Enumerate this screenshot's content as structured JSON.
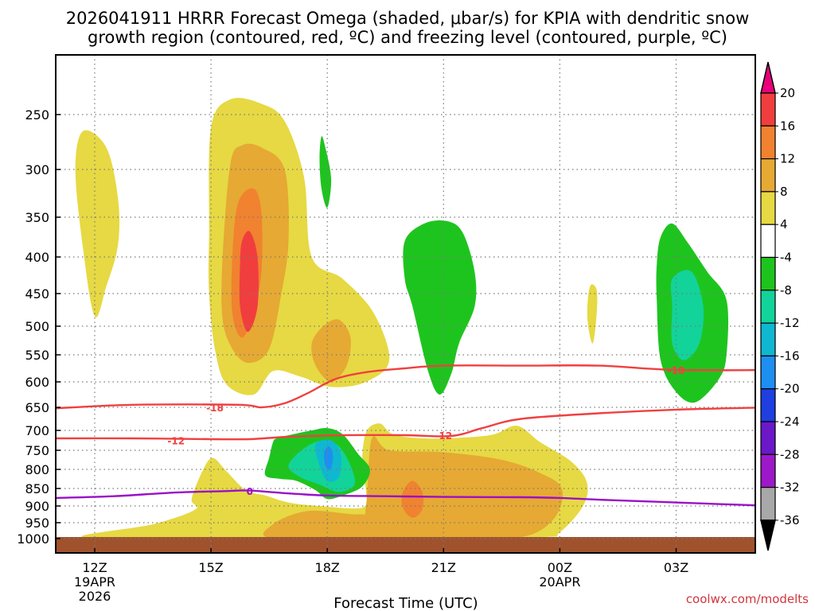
{
  "header": {
    "title_line1": "2026041911 HRRR Forecast Omega (shaded, μbar/s) for KPIA with dendritic snow",
    "title_line2": "growth region (contoured, red, ºC) and freezing level (contoured, purple, ºC)"
  },
  "footer": {
    "xlabel": "Forecast Time (UTC)",
    "credit": "coolwx.com/modelts"
  },
  "chart_data": {
    "type": "time-height cross section",
    "x_unit": "hours after 12Z 19APR 2026",
    "xlim": [
      -1,
      17.5
    ],
    "ylim_hPa": [
      1010,
      195
    ],
    "y_ticks": [
      {
        "value": 250,
        "label": "250"
      },
      {
        "value": 300,
        "label": "300"
      },
      {
        "value": 350,
        "label": "350"
      },
      {
        "value": 400,
        "label": "400"
      },
      {
        "value": 450,
        "label": "450"
      },
      {
        "value": 500,
        "label": "500"
      },
      {
        "value": 550,
        "label": "550"
      },
      {
        "value": 600,
        "label": "600"
      },
      {
        "value": 650,
        "label": "650"
      },
      {
        "value": 700,
        "label": "700"
      },
      {
        "value": 750,
        "label": "750"
      },
      {
        "value": 800,
        "label": "800"
      },
      {
        "value": 850,
        "label": "850"
      },
      {
        "value": 900,
        "label": "900"
      },
      {
        "value": 950,
        "label": "950"
      },
      {
        "value": 1000,
        "label": "1000"
      }
    ],
    "x_ticks": [
      {
        "value": 0,
        "label": "12Z",
        "date1": "19APR",
        "date2": "2026"
      },
      {
        "value": 3,
        "label": "15Z",
        "date1": "",
        "date2": ""
      },
      {
        "value": 6,
        "label": "18Z",
        "date1": "",
        "date2": ""
      },
      {
        "value": 9,
        "label": "21Z",
        "date1": "",
        "date2": ""
      },
      {
        "value": 12,
        "label": "00Z",
        "date1": "20APR",
        "date2": ""
      },
      {
        "value": 15,
        "label": "03Z",
        "date1": "",
        "date2": ""
      }
    ],
    "surface_pressure_hPa": 995,
    "colorbar": {
      "labels": [
        "20",
        "16",
        "12",
        "8",
        "4",
        "-4",
        "-8",
        "-12",
        "-16",
        "-20",
        "-24",
        "-28",
        "-32",
        "-36"
      ],
      "colors": [
        "#e8007a",
        "#f03e3e",
        "#f08230",
        "#e6a933",
        "#e6d943",
        "#ffffff",
        "#1ec41e",
        "#12d39a",
        "#10b7d0",
        "#1d8ff0",
        "#1f3fe0",
        "#6a18c8",
        "#9d18c8",
        "#a8a8a8",
        "#000000"
      ],
      "ground_color": "#a0522d"
    },
    "omega_regions": [
      {
        "level": "4",
        "color": "#e6d943",
        "points": [
          [
            -0.3,
            265
          ],
          [
            0.3,
            280
          ],
          [
            0.6,
            330
          ],
          [
            0.6,
            385
          ],
          [
            0.3,
            440
          ],
          [
            0.0,
            485
          ],
          [
            -0.3,
            390
          ],
          [
            -0.5,
            300
          ]
        ]
      },
      {
        "level": "4",
        "color": "#e6d943",
        "points": [
          [
            3.0,
            262
          ],
          [
            3.5,
            236
          ],
          [
            4.3,
            240
          ],
          [
            4.9,
            256
          ],
          [
            5.4,
            308
          ],
          [
            5.6,
            400
          ],
          [
            6.4,
            430
          ],
          [
            7.2,
            480
          ],
          [
            7.6,
            560
          ],
          [
            7.0,
            600
          ],
          [
            6.1,
            610
          ],
          [
            5.3,
            590
          ],
          [
            4.6,
            580
          ],
          [
            4.1,
            625
          ],
          [
            3.4,
            605
          ],
          [
            3.1,
            540
          ],
          [
            2.95,
            450
          ],
          [
            2.95,
            370
          ]
        ]
      },
      {
        "level": "8",
        "color": "#e6a933",
        "points": [
          [
            3.5,
            295
          ],
          [
            3.8,
            278
          ],
          [
            4.3,
            280
          ],
          [
            4.9,
            300
          ],
          [
            5.0,
            380
          ],
          [
            4.8,
            455
          ],
          [
            4.5,
            540
          ],
          [
            4.0,
            565
          ],
          [
            3.6,
            545
          ],
          [
            3.3,
            490
          ],
          [
            3.3,
            400
          ]
        ]
      },
      {
        "level": "12",
        "color": "#f08230",
        "points": [
          [
            3.7,
            335
          ],
          [
            4.1,
            320
          ],
          [
            4.3,
            345
          ],
          [
            4.3,
            420
          ],
          [
            4.1,
            480
          ],
          [
            3.8,
            520
          ],
          [
            3.55,
            480
          ],
          [
            3.55,
            400
          ]
        ]
      },
      {
        "level": "16",
        "color": "#f03e3e",
        "points": [
          [
            3.8,
            380
          ],
          [
            4.0,
            368
          ],
          [
            4.2,
            400
          ],
          [
            4.2,
            470
          ],
          [
            3.95,
            510
          ],
          [
            3.75,
            470
          ],
          [
            3.75,
            410
          ]
        ]
      },
      {
        "level": "8",
        "color": "#e6a933",
        "points": [
          [
            5.9,
            500
          ],
          [
            6.3,
            490
          ],
          [
            6.6,
            520
          ],
          [
            6.5,
            570
          ],
          [
            6.1,
            600
          ],
          [
            5.7,
            570
          ],
          [
            5.6,
            530
          ]
        ]
      },
      {
        "level": "4",
        "color": "#e6d943",
        "points": [
          [
            12.8,
            438
          ],
          [
            12.95,
            445
          ],
          [
            12.95,
            480
          ],
          [
            12.85,
            530
          ],
          [
            12.72,
            495
          ],
          [
            12.72,
            460
          ]
        ]
      },
      {
        "level": "4",
        "color": "#e6d943",
        "points": [
          [
            -0.2,
            997
          ],
          [
            1.5,
            955
          ],
          [
            2.6,
            910
          ],
          [
            2.5,
            880
          ],
          [
            2.8,
            800
          ],
          [
            3.05,
            770
          ],
          [
            3.4,
            805
          ],
          [
            3.9,
            855
          ],
          [
            4.4,
            870
          ],
          [
            5.0,
            890
          ],
          [
            5.8,
            900
          ],
          [
            6.9,
            905
          ],
          [
            7.0,
            860
          ],
          [
            6.9,
            790
          ],
          [
            7.0,
            705
          ],
          [
            7.35,
            685
          ],
          [
            7.7,
            710
          ],
          [
            8.5,
            720
          ],
          [
            9.5,
            718
          ],
          [
            10.3,
            710
          ],
          [
            10.9,
            690
          ],
          [
            11.5,
            730
          ],
          [
            12.3,
            780
          ],
          [
            12.7,
            835
          ],
          [
            12.6,
            900
          ],
          [
            12.0,
            980
          ],
          [
            11.5,
            995
          ],
          [
            8.0,
            997
          ],
          [
            5.5,
            997
          ]
        ]
      },
      {
        "level": "8",
        "color": "#e6a933",
        "points": [
          [
            4.6,
            1000
          ],
          [
            4.6,
            955
          ],
          [
            5.5,
            915
          ],
          [
            6.8,
            925
          ],
          [
            7.0,
            900
          ],
          [
            7.15,
            720
          ],
          [
            7.6,
            750
          ],
          [
            9.0,
            755
          ],
          [
            10.5,
            775
          ],
          [
            11.5,
            810
          ],
          [
            12.05,
            850
          ],
          [
            11.9,
            930
          ],
          [
            11.2,
            990
          ],
          [
            10.0,
            995
          ],
          [
            7.5,
            998
          ]
        ]
      },
      {
        "level": "12",
        "color": "#f08230",
        "points": [
          [
            7.95,
            860
          ],
          [
            8.2,
            830
          ],
          [
            8.45,
            860
          ],
          [
            8.45,
            910
          ],
          [
            8.2,
            935
          ],
          [
            7.95,
            905
          ]
        ]
      },
      {
        "level": "-4",
        "color": "#1ec41e",
        "points": [
          [
            5.85,
            270
          ],
          [
            5.95,
            280
          ],
          [
            6.1,
            310
          ],
          [
            6.0,
            340
          ],
          [
            5.85,
            320
          ],
          [
            5.8,
            290
          ]
        ]
      },
      {
        "level": "-4",
        "color": "#1ec41e",
        "points": [
          [
            4.7,
            720
          ],
          [
            5.1,
            710
          ],
          [
            5.6,
            700
          ],
          [
            6.0,
            695
          ],
          [
            6.4,
            710
          ],
          [
            6.8,
            760
          ],
          [
            7.1,
            800
          ],
          [
            6.9,
            845
          ],
          [
            6.4,
            870
          ],
          [
            6.0,
            880
          ],
          [
            5.7,
            855
          ],
          [
            5.2,
            830
          ],
          [
            4.8,
            825
          ],
          [
            4.4,
            815
          ],
          [
            4.5,
            770
          ],
          [
            4.6,
            730
          ]
        ]
      },
      {
        "level": "-8",
        "color": "#12d39a",
        "points": [
          [
            5.0,
            790
          ],
          [
            5.4,
            745
          ],
          [
            5.9,
            725
          ],
          [
            6.3,
            740
          ],
          [
            6.6,
            790
          ],
          [
            6.7,
            840
          ],
          [
            6.3,
            860
          ],
          [
            5.8,
            840
          ],
          [
            5.3,
            820
          ]
        ]
      },
      {
        "level": "-12",
        "color": "#10b7d0",
        "points": [
          [
            5.7,
            735
          ],
          [
            6.1,
            725
          ],
          [
            6.35,
            760
          ],
          [
            6.3,
            820
          ],
          [
            6.0,
            830
          ],
          [
            5.8,
            790
          ]
        ]
      },
      {
        "level": "-16",
        "color": "#1d8ff0",
        "points": [
          [
            5.92,
            755
          ],
          [
            6.05,
            740
          ],
          [
            6.15,
            765
          ],
          [
            6.08,
            800
          ],
          [
            5.95,
            790
          ]
        ]
      },
      {
        "level": "-4",
        "color": "#1ec41e",
        "points": [
          [
            8.0,
            380
          ],
          [
            8.5,
            358
          ],
          [
            9.1,
            355
          ],
          [
            9.5,
            370
          ],
          [
            9.8,
            420
          ],
          [
            9.8,
            470
          ],
          [
            9.4,
            530
          ],
          [
            9.2,
            585
          ],
          [
            8.9,
            625
          ],
          [
            8.6,
            580
          ],
          [
            8.2,
            470
          ],
          [
            8.0,
            430
          ]
        ]
      },
      {
        "level": "-4",
        "color": "#1ec41e",
        "points": [
          [
            14.6,
            375
          ],
          [
            14.9,
            358
          ],
          [
            15.3,
            382
          ],
          [
            15.8,
            420
          ],
          [
            16.3,
            460
          ],
          [
            16.3,
            550
          ],
          [
            16.1,
            595
          ],
          [
            15.5,
            640
          ],
          [
            15.0,
            620
          ],
          [
            14.6,
            560
          ],
          [
            14.5,
            460
          ],
          [
            14.5,
            410
          ]
        ]
      },
      {
        "level": "-8",
        "color": "#12d39a",
        "points": [
          [
            14.9,
            430
          ],
          [
            15.4,
            420
          ],
          [
            15.7,
            470
          ],
          [
            15.6,
            530
          ],
          [
            15.2,
            560
          ],
          [
            14.9,
            530
          ],
          [
            14.9,
            470
          ]
        ]
      }
    ],
    "contours": [
      {
        "name": "-18C isotherm",
        "color": "#f04040",
        "label": "-18",
        "label_pos": [
          3.1,
          650
        ],
        "points": [
          [
            -1,
            652
          ],
          [
            1,
            645
          ],
          [
            3.7,
            645
          ],
          [
            4.3,
            650
          ],
          [
            4.9,
            642
          ],
          [
            5.5,
            622
          ],
          [
            6.2,
            595
          ],
          [
            7.0,
            582
          ],
          [
            8.0,
            575
          ],
          [
            9.0,
            570
          ],
          [
            11.0,
            570
          ],
          [
            13.0,
            570
          ],
          [
            15.0,
            578
          ],
          [
            17.5,
            578
          ]
        ]
      },
      {
        "name": "-18C isotherm (right)",
        "color": "#f04040",
        "label": "-18",
        "label_pos": [
          15.0,
          578
        ],
        "points": []
      },
      {
        "name": "-12C isotherm",
        "color": "#f04040",
        "label": "-12",
        "label_pos": [
          2.1,
          725
        ],
        "points": [
          [
            -1,
            720
          ],
          [
            1,
            720
          ],
          [
            3.0,
            722
          ],
          [
            4.0,
            722
          ],
          [
            5.0,
            716
          ],
          [
            6.5,
            712
          ],
          [
            8.0,
            712
          ],
          [
            9.2,
            714
          ],
          [
            10.0,
            695
          ],
          [
            11.0,
            675
          ],
          [
            13.0,
            663
          ],
          [
            15.0,
            655
          ],
          [
            17.5,
            650
          ]
        ]
      },
      {
        "name": "-12C isotherm (label)",
        "color": "#f04040",
        "label": "-12",
        "label_pos": [
          9.0,
          712
        ],
        "points": []
      },
      {
        "name": "0C freezing level",
        "color": "#9a10c8",
        "label": "0",
        "label_pos": [
          4.0,
          857
        ],
        "points": [
          [
            -1,
            877
          ],
          [
            0.5,
            872
          ],
          [
            2.0,
            862
          ],
          [
            3.5,
            857
          ],
          [
            4.0,
            856
          ],
          [
            5.0,
            864
          ],
          [
            6.0,
            870
          ],
          [
            7.5,
            872
          ],
          [
            9.0,
            874
          ],
          [
            11.0,
            875
          ],
          [
            12.0,
            877
          ],
          [
            13.0,
            882
          ],
          [
            14.5,
            888
          ],
          [
            16.0,
            894
          ],
          [
            17.5,
            900
          ]
        ]
      }
    ]
  }
}
